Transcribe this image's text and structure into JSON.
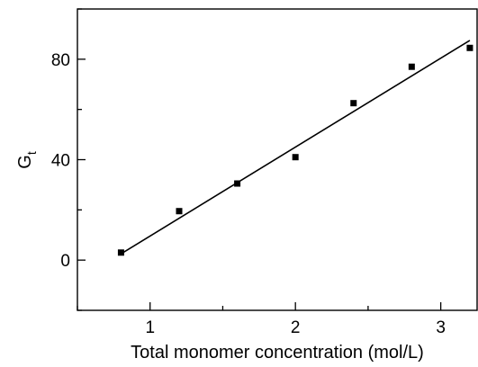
{
  "chart_data": {
    "type": "scatter",
    "title": "",
    "xlabel": "Total monomer concentration (mol/L)",
    "ylabel": "G",
    "ylabel_subscript": "t",
    "xlim": [
      0.5,
      3.25
    ],
    "ylim": [
      -20,
      100
    ],
    "xticks_major": [
      1,
      2,
      3
    ],
    "xticks_minor": [
      0.5,
      1.5,
      2.5
    ],
    "yticks_major": [
      0,
      40,
      80
    ],
    "yticks_minor": [
      -20,
      20,
      60,
      100
    ],
    "grid": false,
    "series": [
      {
        "marker": "square",
        "color": "#000000",
        "x": [
          0.8,
          1.2,
          1.6,
          2.0,
          2.4,
          2.8,
          3.2
        ],
        "y": [
          3,
          19.5,
          30.5,
          41,
          62.5,
          77,
          84.5
        ]
      }
    ],
    "fit_line": {
      "color": "#000000",
      "x": [
        0.8,
        3.2
      ],
      "y": [
        2.5,
        87.5
      ]
    }
  }
}
